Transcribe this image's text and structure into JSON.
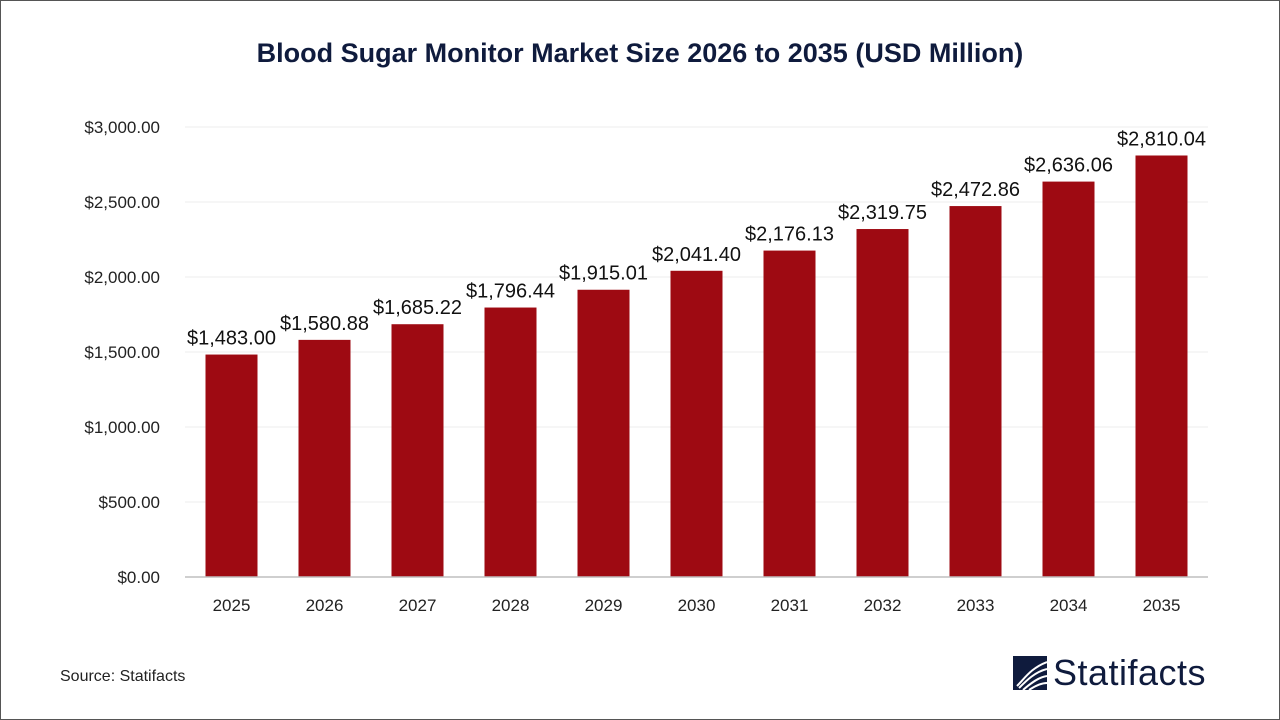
{
  "chart_data": {
    "type": "bar",
    "title": "Blood Sugar Monitor Market Size 2026 to 2035 (USD Million)",
    "categories": [
      "2025",
      "2026",
      "2027",
      "2028",
      "2029",
      "2030",
      "2031",
      "2032",
      "2033",
      "2034",
      "2035"
    ],
    "values": [
      1483.0,
      1580.88,
      1685.22,
      1796.44,
      1915.01,
      2041.4,
      2176.13,
      2319.75,
      2472.86,
      2636.06,
      2810.04
    ],
    "data_labels": [
      "$1,483.00",
      "$1,580.88",
      "$1,685.22",
      "$1,796.44",
      "$1,915.01",
      "$2,041.40",
      "$2,176.13",
      "$2,319.75",
      "$2,472.86",
      "$2,636.06",
      "$2,810.04"
    ],
    "yticks": [
      0,
      500,
      1000,
      1500,
      2000,
      2500,
      3000
    ],
    "ytick_labels": [
      "$0.00",
      "$500.00",
      "$1,000.00",
      "$1,500.00",
      "$2,000.00",
      "$2,500.00",
      "$3,000.00"
    ],
    "ylim": [
      0,
      3000
    ],
    "xlabel": "",
    "ylabel": "",
    "grid": true,
    "bar_color": "#9e0a12",
    "legend": "none"
  },
  "source": "Source: Statifacts",
  "logo": {
    "text": "Statifacts",
    "color": "#0f1b3d"
  }
}
